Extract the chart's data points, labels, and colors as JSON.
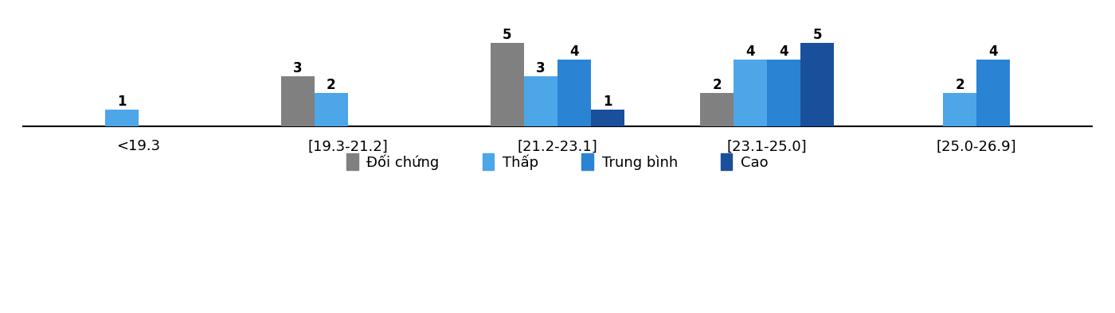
{
  "categories": [
    "<19.3",
    "[19.3-21.2]",
    "[21.2-23.1]",
    "[23.1-25.0]",
    "[25.0-26.9]"
  ],
  "series": {
    "Đối chứng": [
      0,
      3,
      5,
      2,
      0
    ],
    "Thấp": [
      1,
      2,
      3,
      4,
      2
    ],
    "Trung bình": [
      0,
      0,
      4,
      4,
      4
    ],
    "Cao": [
      0,
      0,
      1,
      5,
      0
    ]
  },
  "colors": {
    "Đối chứng": "#808080",
    "Thấp": "#4da6e8",
    "Trung bình": "#2b83d4",
    "Cao": "#1a4f9c"
  },
  "ylim": [
    0,
    6.5
  ],
  "bar_width": 0.16,
  "label_fontsize": 12,
  "tick_fontsize": 13,
  "legend_fontsize": 13,
  "background_color": "#ffffff"
}
